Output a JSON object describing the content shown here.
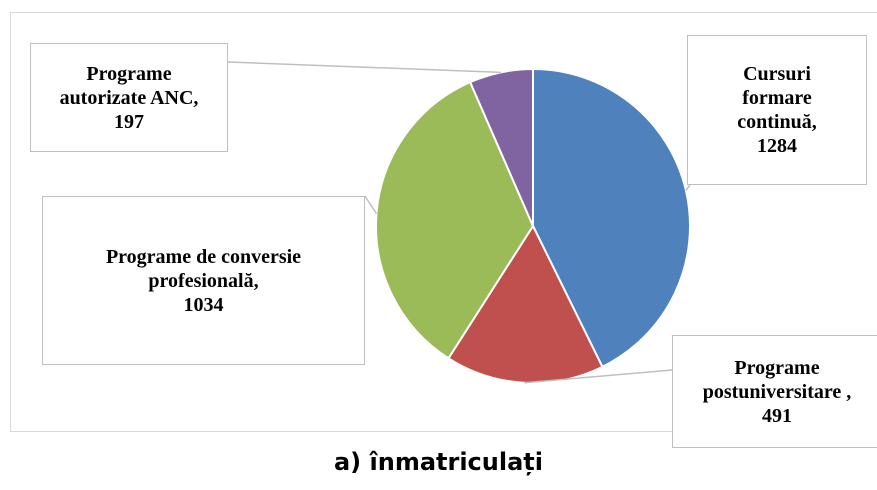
{
  "chart_data": {
    "type": "pie",
    "title": "a) înmatriculați",
    "categories": [
      "Cursuri formare continuă,",
      "Programe postuniversitare ,",
      "Programe de conversie profesională,",
      "Programe autorizate ANC,"
    ],
    "values": [
      1284,
      491,
      1034,
      197
    ],
    "colors": [
      "#4f81bd",
      "#c0504d",
      "#9bbb59",
      "#8064a2"
    ]
  }
}
